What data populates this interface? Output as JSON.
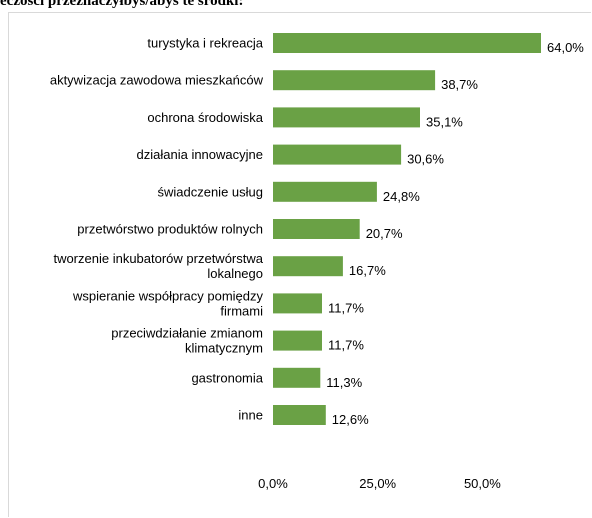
{
  "header": {
    "title_fragment": "eczości przeznaczyłbyś/abyś te środki:"
  },
  "chart_data": {
    "type": "bar",
    "orientation": "horizontal",
    "title": "",
    "xlabel": "",
    "ylabel": "",
    "bar_color": "#6aa145",
    "categories": [
      [
        "turystyka i rekreacja"
      ],
      [
        "aktywizacja zawodowa mieszkańców"
      ],
      [
        "ochrona środowiska"
      ],
      [
        "działania innowacyjne"
      ],
      [
        "świadczenie usług"
      ],
      [
        "przetwórstwo produktów rolnych"
      ],
      [
        "tworzenie inkubatorów przetwórstwa",
        "lokalnego"
      ],
      [
        "wspieranie współpracy pomiędzy",
        "firmami"
      ],
      [
        "przeciwdziałanie zmianom",
        "klimatycznym"
      ],
      [
        "gastronomia"
      ],
      [
        "inne"
      ]
    ],
    "values": [
      64.0,
      38.7,
      35.1,
      30.6,
      24.8,
      20.7,
      16.7,
      11.7,
      11.7,
      11.3,
      12.6
    ],
    "value_labels": [
      "64,0%",
      "38,7%",
      "35,1%",
      "30,6%",
      "24,8%",
      "20,7%",
      "16,7%",
      "11,7%",
      "11,7%",
      "11,3%",
      "12,6%"
    ],
    "xlim": [
      0,
      65
    ],
    "xticks": [
      0,
      25,
      50
    ],
    "xtick_labels": [
      "0,0%",
      "25,0%",
      "50,0%"
    ],
    "grid": false
  }
}
